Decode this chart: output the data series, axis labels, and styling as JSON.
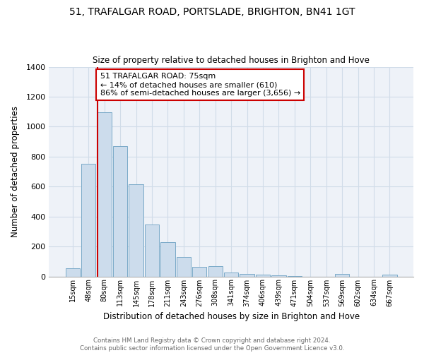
{
  "title1": "51, TRAFALGAR ROAD, PORTSLADE, BRIGHTON, BN41 1GT",
  "title2": "Size of property relative to detached houses in Brighton and Hove",
  "xlabel": "Distribution of detached houses by size in Brighton and Hove",
  "ylabel": "Number of detached properties",
  "bar_labels": [
    "15sqm",
    "48sqm",
    "80sqm",
    "113sqm",
    "145sqm",
    "178sqm",
    "211sqm",
    "243sqm",
    "276sqm",
    "308sqm",
    "341sqm",
    "374sqm",
    "406sqm",
    "439sqm",
    "471sqm",
    "504sqm",
    "537sqm",
    "569sqm",
    "602sqm",
    "634sqm",
    "667sqm"
  ],
  "bar_values": [
    55,
    750,
    1095,
    870,
    615,
    348,
    228,
    130,
    65,
    70,
    25,
    18,
    10,
    5,
    2,
    0,
    0,
    15,
    0,
    0,
    10
  ],
  "bar_fill_color": "#ccdcec",
  "bar_edge_color": "#7aaac8",
  "vline_color": "#cc0000",
  "annotation_title": "51 TRAFALGAR ROAD: 75sqm",
  "annotation_line1": "← 14% of detached houses are smaller (610)",
  "annotation_line2": "86% of semi-detached houses are larger (3,656) →",
  "annotation_box_color": "#ffffff",
  "annotation_box_edge": "#cc0000",
  "ylim": [
    0,
    1400
  ],
  "yticks": [
    0,
    200,
    400,
    600,
    800,
    1000,
    1200,
    1400
  ],
  "grid_color": "#d0dce8",
  "bg_color": "#eef2f8",
  "footnote1": "Contains HM Land Registry data © Crown copyright and database right 2024.",
  "footnote2": "Contains public sector information licensed under the Open Government Licence v3.0.",
  "figsize": [
    6.0,
    5.0
  ],
  "dpi": 100
}
